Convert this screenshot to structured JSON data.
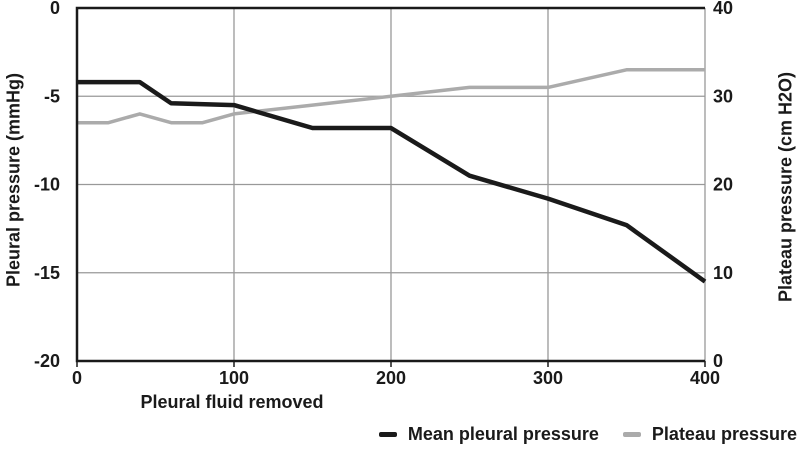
{
  "chart_data": {
    "type": "line",
    "title": "",
    "xlabel": "Pleural fluid removed",
    "xlim": [
      0,
      400
    ],
    "x_ticks": [
      0,
      100,
      200,
      300,
      400
    ],
    "grid": true,
    "legend_position": "bottom-right",
    "left_axis": {
      "label": "Pleural pressure (mmHg)",
      "lim": [
        -20,
        0
      ],
      "ticks": [
        0,
        -5,
        -10,
        -15,
        -20
      ]
    },
    "right_axis": {
      "label": "Plateau pressure (cm H2O)",
      "lim": [
        0,
        40
      ],
      "ticks": [
        40,
        30,
        20,
        10,
        0
      ]
    },
    "series": [
      {
        "name": "Mean pleural pressure",
        "axis": "left",
        "color": "#1a1a1a",
        "x": [
          0,
          40,
          60,
          100,
          150,
          200,
          250,
          300,
          350,
          400
        ],
        "values": [
          -4.2,
          -4.2,
          -5.4,
          -5.5,
          -6.8,
          -6.8,
          -9.5,
          -10.8,
          -12.3,
          -15.5
        ]
      },
      {
        "name": "Plateau pressure",
        "axis": "right",
        "color": "#ababab",
        "x": [
          0,
          20,
          40,
          60,
          80,
          100,
          150,
          200,
          250,
          300,
          350,
          400
        ],
        "values": [
          27,
          27,
          28,
          27,
          27,
          28,
          29,
          30,
          31,
          31,
          33,
          33
        ]
      }
    ]
  },
  "colors": {
    "background": "#ffffff",
    "frame": "#1a1a1a",
    "grid": "#999999",
    "text": "#1a1a1a"
  }
}
